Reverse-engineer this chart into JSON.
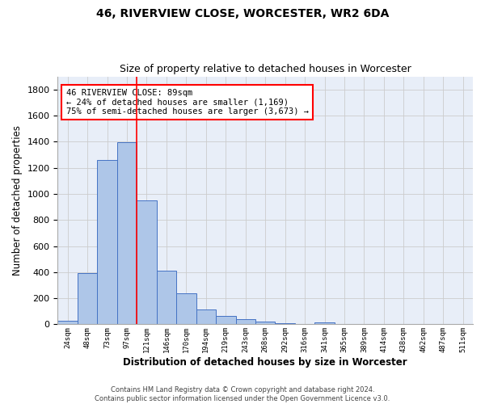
{
  "title1": "46, RIVERVIEW CLOSE, WORCESTER, WR2 6DA",
  "title2": "Size of property relative to detached houses in Worcester",
  "xlabel": "Distribution of detached houses by size in Worcester",
  "ylabel": "Number of detached properties",
  "footer1": "Contains HM Land Registry data © Crown copyright and database right 2024.",
  "footer2": "Contains public sector information licensed under the Open Government Licence v3.0.",
  "bin_labels": [
    "24sqm",
    "48sqm",
    "73sqm",
    "97sqm",
    "121sqm",
    "146sqm",
    "170sqm",
    "194sqm",
    "219sqm",
    "243sqm",
    "268sqm",
    "292sqm",
    "316sqm",
    "341sqm",
    "365sqm",
    "389sqm",
    "414sqm",
    "438sqm",
    "462sqm",
    "487sqm",
    "511sqm"
  ],
  "bar_values": [
    25,
    390,
    1260,
    1395,
    950,
    410,
    235,
    115,
    65,
    42,
    20,
    8,
    0,
    15,
    0,
    0,
    0,
    0,
    0,
    0,
    0
  ],
  "bar_color": "#aec6e8",
  "bar_edge_color": "#4472c4",
  "vline_x": 3.5,
  "vline_color": "red",
  "annotation_text": "46 RIVERVIEW CLOSE: 89sqm\n← 24% of detached houses are smaller (1,169)\n75% of semi-detached houses are larger (3,673) →",
  "annotation_box_color": "white",
  "annotation_box_edgecolor": "red",
  "ylim": [
    0,
    1900
  ],
  "yticks": [
    0,
    200,
    400,
    600,
    800,
    1000,
    1200,
    1400,
    1600,
    1800
  ],
  "grid_color": "#cccccc",
  "bg_color": "#e8eef8"
}
